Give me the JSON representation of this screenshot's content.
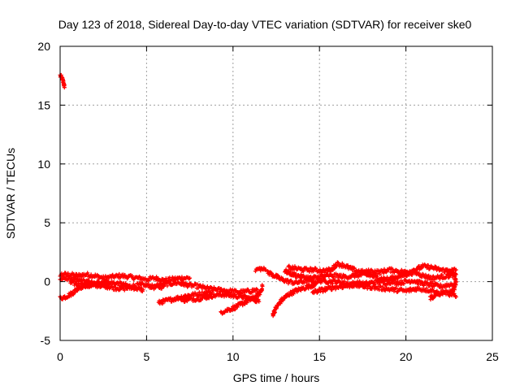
{
  "chart_data": {
    "type": "scatter",
    "title": "Day 123 of 2018, Sidereal Day-to-day VTEC variation (SDTVAR) for receiver ske0",
    "xlabel": "GPS time / hours",
    "ylabel": "SDTVAR / TECUs",
    "xlim": [
      0,
      25
    ],
    "ylim": [
      -5,
      20
    ],
    "xticks": [
      "0",
      "5",
      "10",
      "15",
      "20",
      "25"
    ],
    "yticks": [
      "-5",
      "0",
      "5",
      "10",
      "15",
      "20"
    ],
    "grid": true,
    "series": [
      {
        "name": "SDTVAR",
        "color": "#ff0000",
        "marker": "plus",
        "tracks": [
          [
            [
              0.0,
              17.5
            ],
            [
              0.1,
              17.3
            ],
            [
              0.2,
              16.9
            ],
            [
              0.25,
              16.5
            ]
          ],
          [
            [
              0.0,
              0.6
            ],
            [
              0.5,
              0.6
            ],
            [
              1.0,
              0.5
            ],
            [
              1.5,
              0.6
            ],
            [
              2.0,
              0.5
            ],
            [
              2.5,
              0.3
            ],
            [
              3.0,
              0.4
            ],
            [
              3.5,
              0.5
            ],
            [
              4.0,
              0.4
            ],
            [
              4.5,
              0.3
            ],
            [
              5.0,
              0.2
            ],
            [
              5.5,
              0.3
            ],
            [
              6.0,
              0.1
            ],
            [
              6.5,
              0.2
            ],
            [
              7.0,
              0.3
            ],
            [
              7.5,
              0.3
            ]
          ],
          [
            [
              0.0,
              0.2
            ],
            [
              0.5,
              0.3
            ],
            [
              1.0,
              0.1
            ],
            [
              1.5,
              0.0
            ],
            [
              2.0,
              -0.2
            ],
            [
              2.5,
              -0.3
            ],
            [
              3.0,
              -0.1
            ],
            [
              3.5,
              -0.2
            ],
            [
              4.0,
              -0.4
            ],
            [
              4.5,
              -0.3
            ],
            [
              5.0,
              -0.3
            ],
            [
              5.5,
              -0.5
            ],
            [
              6.0,
              -0.4
            ]
          ],
          [
            [
              0.0,
              -1.4
            ],
            [
              0.3,
              -1.3
            ],
            [
              0.7,
              -1.0
            ],
            [
              1.0,
              -0.6
            ],
            [
              1.3,
              -0.4
            ],
            [
              1.8,
              -0.2
            ],
            [
              2.3,
              -0.1
            ],
            [
              2.8,
              0.0
            ]
          ],
          [
            [
              0.6,
              -0.1
            ],
            [
              1.2,
              -0.3
            ],
            [
              1.8,
              -0.4
            ],
            [
              2.4,
              -0.3
            ],
            [
              3.0,
              -0.5
            ],
            [
              3.6,
              -0.6
            ],
            [
              4.2,
              -0.5
            ],
            [
              4.8,
              -0.7
            ]
          ],
          [
            [
              5.6,
              -0.3
            ],
            [
              6.2,
              -0.2
            ],
            [
              6.8,
              -0.1
            ],
            [
              7.4,
              -0.3
            ],
            [
              8.0,
              -0.4
            ],
            [
              8.6,
              -0.6
            ],
            [
              9.2,
              -0.7
            ],
            [
              9.8,
              -0.8
            ],
            [
              10.4,
              -0.9
            ],
            [
              11.0,
              -0.8
            ],
            [
              11.4,
              -0.7
            ]
          ],
          [
            [
              5.7,
              -1.8
            ],
            [
              6.2,
              -1.6
            ],
            [
              6.8,
              -1.4
            ],
            [
              7.3,
              -1.2
            ],
            [
              7.8,
              -1.1
            ],
            [
              8.3,
              -1.0
            ],
            [
              8.8,
              -0.9
            ]
          ],
          [
            [
              7.0,
              -1.6
            ],
            [
              7.6,
              -1.5
            ],
            [
              8.2,
              -1.4
            ],
            [
              8.8,
              -1.2
            ],
            [
              9.4,
              -1.1
            ],
            [
              10.0,
              -1.2
            ],
            [
              10.6,
              -1.3
            ],
            [
              11.2,
              -1.5
            ],
            [
              11.5,
              -1.7
            ]
          ],
          [
            [
              9.3,
              -2.6
            ],
            [
              9.7,
              -2.4
            ],
            [
              10.1,
              -2.2
            ],
            [
              10.5,
              -1.9
            ],
            [
              10.9,
              -1.6
            ],
            [
              11.3,
              -1.3
            ],
            [
              11.6,
              -0.9
            ],
            [
              11.7,
              -0.4
            ]
          ],
          [
            [
              11.3,
              1.0
            ],
            [
              11.6,
              1.1
            ],
            [
              11.9,
              1.0
            ]
          ],
          [
            [
              12.3,
              -2.8
            ],
            [
              12.5,
              -2.2
            ],
            [
              12.8,
              -1.6
            ],
            [
              13.2,
              -1.1
            ],
            [
              13.6,
              -0.8
            ],
            [
              14.0,
              -0.6
            ],
            [
              14.4,
              -0.4
            ],
            [
              14.8,
              -0.2
            ]
          ],
          [
            [
              12.0,
              0.8
            ],
            [
              12.4,
              0.5
            ],
            [
              12.8,
              0.2
            ],
            [
              13.2,
              0.0
            ],
            [
              13.6,
              -0.1
            ],
            [
              14.0,
              0.0
            ],
            [
              14.4,
              0.1
            ],
            [
              14.8,
              0.0
            ],
            [
              15.2,
              0.1
            ],
            [
              15.6,
              0.0
            ],
            [
              16.0,
              0.0
            ],
            [
              16.4,
              -0.1
            ],
            [
              16.8,
              -0.2
            ],
            [
              17.2,
              -0.1
            ],
            [
              17.6,
              -0.2
            ],
            [
              18.0,
              -0.1
            ],
            [
              18.4,
              0.0
            ],
            [
              18.8,
              -0.1
            ],
            [
              19.2,
              0.0
            ],
            [
              19.6,
              -0.1
            ],
            [
              20.0,
              0.0
            ],
            [
              20.4,
              0.1
            ],
            [
              20.8,
              -0.1
            ],
            [
              21.2,
              -0.2
            ],
            [
              21.6,
              -0.3
            ],
            [
              22.0,
              -0.4
            ],
            [
              22.4,
              -0.3
            ],
            [
              22.8,
              -0.2
            ]
          ],
          [
            [
              13.0,
              0.9
            ],
            [
              13.5,
              0.6
            ],
            [
              14.0,
              0.4
            ],
            [
              14.5,
              0.3
            ],
            [
              15.0,
              0.4
            ],
            [
              15.5,
              0.5
            ],
            [
              16.0,
              0.5
            ],
            [
              16.5,
              0.4
            ],
            [
              17.0,
              0.5
            ],
            [
              17.5,
              0.6
            ],
            [
              18.0,
              0.5
            ],
            [
              18.5,
              0.3
            ],
            [
              19.0,
              0.2
            ],
            [
              19.5,
              0.4
            ],
            [
              20.0,
              0.6
            ],
            [
              20.5,
              0.8
            ],
            [
              21.0,
              0.5
            ],
            [
              21.5,
              0.3
            ],
            [
              22.0,
              0.4
            ],
            [
              22.5,
              0.5
            ],
            [
              22.9,
              0.6
            ]
          ],
          [
            [
              13.2,
              1.2
            ],
            [
              13.7,
              1.1
            ],
            [
              14.2,
              1.0
            ],
            [
              14.7,
              1.0
            ],
            [
              15.2,
              0.9
            ],
            [
              15.7,
              1.0
            ],
            [
              16.0,
              1.5
            ],
            [
              16.4,
              1.4
            ],
            [
              16.8,
              1.1
            ],
            [
              17.2,
              0.9
            ],
            [
              17.6,
              0.8
            ],
            [
              18.0,
              0.9
            ],
            [
              18.5,
              0.8
            ],
            [
              19.0,
              1.0
            ],
            [
              19.5,
              0.9
            ],
            [
              20.0,
              0.8
            ],
            [
              20.5,
              1.0
            ],
            [
              21.0,
              1.3
            ],
            [
              21.5,
              1.2
            ],
            [
              22.0,
              1.0
            ],
            [
              22.5,
              0.9
            ],
            [
              22.9,
              1.0
            ]
          ],
          [
            [
              14.6,
              -0.9
            ],
            [
              15.2,
              -0.7
            ],
            [
              15.8,
              -0.5
            ],
            [
              16.4,
              -0.4
            ],
            [
              17.0,
              -0.3
            ],
            [
              17.6,
              -0.4
            ],
            [
              18.2,
              -0.5
            ],
            [
              18.8,
              -0.6
            ],
            [
              19.4,
              -0.7
            ],
            [
              20.0,
              -0.8
            ],
            [
              20.6,
              -0.6
            ],
            [
              21.2,
              -0.7
            ],
            [
              21.8,
              -0.8
            ]
          ],
          [
            [
              21.4,
              -1.4
            ],
            [
              21.8,
              -1.1
            ],
            [
              22.2,
              -0.9
            ],
            [
              22.6,
              -1.0
            ],
            [
              22.9,
              -1.3
            ]
          ],
          [
            [
              22.4,
              1.0
            ],
            [
              22.8,
              0.6
            ],
            [
              22.9,
              0.0
            ],
            [
              22.8,
              -0.6
            ],
            [
              22.5,
              -1.1
            ]
          ]
        ]
      }
    ]
  }
}
